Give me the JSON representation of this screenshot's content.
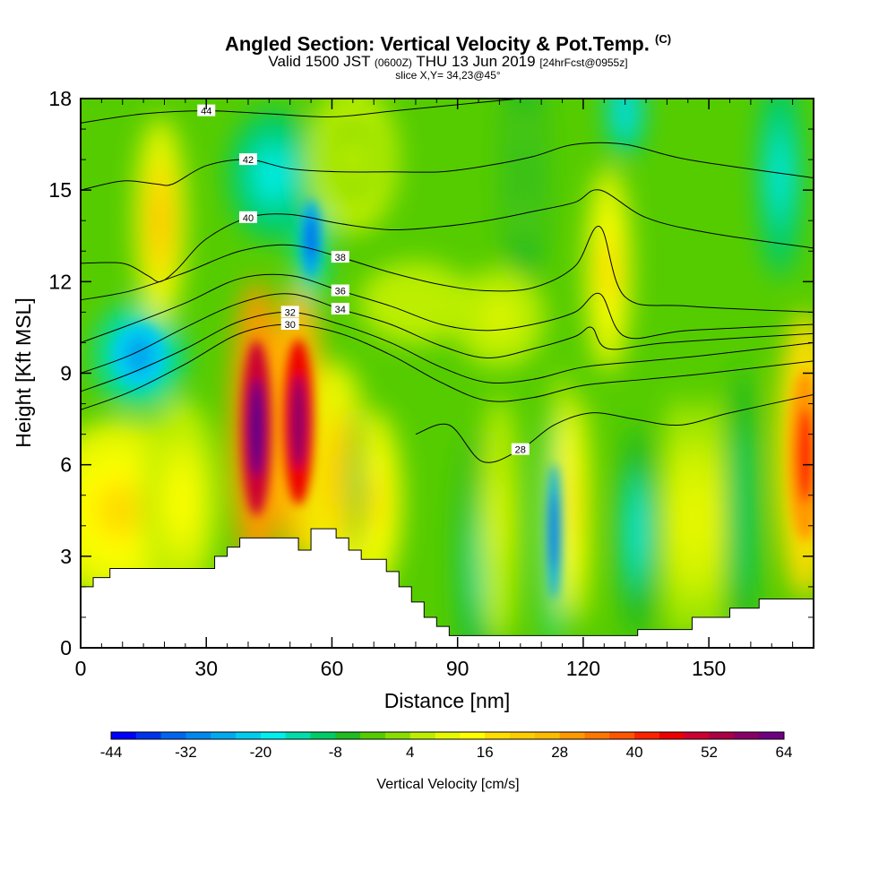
{
  "title": {
    "main": "Angled Section: Vertical Velocity & Pot.Temp.",
    "mark": "(C)",
    "valid_prefix": "Valid 1500 JST",
    "valid_utc": "(0600Z)",
    "valid_date": "THU 13 Jun 2019",
    "forecast": "[24hrFcst@0955z]",
    "slice": "slice X,Y= 34,23@45°"
  },
  "chart_data": {
    "type": "heatmap",
    "xlabel": "Distance [nm]",
    "ylabel": "Height [Kft MSL]",
    "xlim": [
      0,
      175
    ],
    "ylim": [
      0,
      18
    ],
    "xticks": [
      "0",
      "30",
      "60",
      "90",
      "120",
      "150"
    ],
    "yticks": [
      "0",
      "3",
      "6",
      "9",
      "12",
      "15",
      "18"
    ],
    "colorbar": {
      "label": "Vertical Velocity [cm/s]",
      "min": -44,
      "max": 64,
      "step": 4,
      "tick_labels": [
        "-44",
        "-32",
        "-20",
        "-8",
        "4",
        "16",
        "28",
        "40",
        "52",
        "64"
      ]
    },
    "terrain_kft": [
      [
        0,
        2.0
      ],
      [
        3,
        2.3
      ],
      [
        7,
        2.6
      ],
      [
        29,
        2.6
      ],
      [
        32,
        3.0
      ],
      [
        35,
        3.3
      ],
      [
        38,
        3.6
      ],
      [
        49,
        3.6
      ],
      [
        52,
        3.2
      ],
      [
        55,
        3.9
      ],
      [
        58,
        3.9
      ],
      [
        61,
        3.6
      ],
      [
        64,
        3.2
      ],
      [
        67,
        2.9
      ],
      [
        73,
        2.5
      ],
      [
        76,
        2.0
      ],
      [
        79,
        1.5
      ],
      [
        82,
        1.0
      ],
      [
        85,
        0.7
      ],
      [
        88,
        0.4
      ],
      [
        130,
        0.4
      ],
      [
        133,
        0.6
      ],
      [
        143,
        0.6
      ],
      [
        146,
        1.0
      ],
      [
        152,
        1.0
      ],
      [
        155,
        1.3
      ],
      [
        159,
        1.3
      ],
      [
        162,
        1.6
      ],
      [
        175,
        1.6
      ]
    ],
    "theta_contours": [
      {
        "label": "28",
        "points": [
          [
            80,
            7.0
          ],
          [
            88,
            7.3
          ],
          [
            96,
            6.1
          ],
          [
            105,
            6.5
          ],
          [
            113,
            7.3
          ],
          [
            122,
            7.7
          ],
          [
            132,
            7.5
          ],
          [
            143,
            7.3
          ],
          [
            155,
            7.7
          ],
          [
            175,
            8.3
          ]
        ]
      },
      {
        "label": "30",
        "points": [
          [
            0,
            7.8
          ],
          [
            12,
            8.4
          ],
          [
            25,
            9.3
          ],
          [
            38,
            10.3
          ],
          [
            50,
            10.6
          ],
          [
            62,
            10.3
          ],
          [
            74,
            9.6
          ],
          [
            86,
            8.7
          ],
          [
            97,
            8.1
          ],
          [
            108,
            8.2
          ],
          [
            120,
            8.6
          ],
          [
            135,
            8.8
          ],
          [
            150,
            9.0
          ],
          [
            175,
            9.4
          ]
        ]
      },
      {
        "label": "32",
        "points": [
          [
            0,
            8.4
          ],
          [
            12,
            9.0
          ],
          [
            25,
            9.8
          ],
          [
            38,
            10.7
          ],
          [
            50,
            11.0
          ],
          [
            62,
            10.6
          ],
          [
            74,
            10.0
          ],
          [
            86,
            9.2
          ],
          [
            97,
            8.7
          ],
          [
            108,
            8.8
          ],
          [
            120,
            9.2
          ],
          [
            135,
            9.4
          ],
          [
            150,
            9.6
          ],
          [
            175,
            10.0
          ]
        ]
      },
      {
        "label": "34",
        "points": [
          [
            0,
            9.0
          ],
          [
            12,
            9.6
          ],
          [
            25,
            10.5
          ],
          [
            38,
            11.3
          ],
          [
            50,
            11.6
          ],
          [
            62,
            11.1
          ],
          [
            74,
            10.6
          ],
          [
            86,
            9.9
          ],
          [
            97,
            9.5
          ],
          [
            108,
            9.8
          ],
          [
            118,
            10.2
          ],
          [
            122,
            10.5
          ],
          [
            126,
            9.8
          ],
          [
            140,
            10.0
          ],
          [
            175,
            10.3
          ]
        ]
      },
      {
        "label": "36",
        "points": [
          [
            0,
            10.0
          ],
          [
            12,
            10.6
          ],
          [
            25,
            11.3
          ],
          [
            38,
            12.1
          ],
          [
            50,
            12.2
          ],
          [
            62,
            11.7
          ],
          [
            74,
            11.2
          ],
          [
            86,
            10.6
          ],
          [
            97,
            10.4
          ],
          [
            108,
            10.6
          ],
          [
            118,
            11.0
          ],
          [
            124,
            11.6
          ],
          [
            130,
            10.2
          ],
          [
            145,
            10.4
          ],
          [
            175,
            10.6
          ]
        ]
      },
      {
        "label": "38",
        "points": [
          [
            0,
            11.4
          ],
          [
            12,
            11.7
          ],
          [
            25,
            12.3
          ],
          [
            38,
            13.0
          ],
          [
            50,
            13.2
          ],
          [
            62,
            12.8
          ],
          [
            74,
            12.3
          ],
          [
            86,
            11.9
          ],
          [
            97,
            11.7
          ],
          [
            108,
            11.8
          ],
          [
            118,
            12.5
          ],
          [
            124,
            13.8
          ],
          [
            130,
            11.5
          ],
          [
            145,
            11.2
          ],
          [
            175,
            11.0
          ]
        ]
      },
      {
        "label": "40",
        "points": [
          [
            0,
            12.6
          ],
          [
            10,
            12.6
          ],
          [
            16,
            12.2
          ],
          [
            19,
            12.0
          ],
          [
            23,
            12.4
          ],
          [
            30,
            13.4
          ],
          [
            40,
            14.1
          ],
          [
            50,
            14.2
          ],
          [
            62,
            13.9
          ],
          [
            74,
            13.7
          ],
          [
            86,
            13.8
          ],
          [
            97,
            14.0
          ],
          [
            108,
            14.3
          ],
          [
            118,
            14.6
          ],
          [
            124,
            15.0
          ],
          [
            135,
            14.1
          ],
          [
            150,
            13.6
          ],
          [
            175,
            13.1
          ]
        ]
      },
      {
        "label": "42",
        "points": [
          [
            0,
            15.0
          ],
          [
            10,
            15.3
          ],
          [
            18,
            15.2
          ],
          [
            22,
            15.2
          ],
          [
            30,
            15.8
          ],
          [
            40,
            16.0
          ],
          [
            50,
            15.7
          ],
          [
            62,
            15.6
          ],
          [
            74,
            15.6
          ],
          [
            86,
            15.6
          ],
          [
            97,
            15.8
          ],
          [
            108,
            16.1
          ],
          [
            118,
            16.5
          ],
          [
            130,
            16.5
          ],
          [
            145,
            16.0
          ],
          [
            175,
            15.4
          ]
        ]
      },
      {
        "label": "44",
        "points": [
          [
            0,
            17.2
          ],
          [
            15,
            17.5
          ],
          [
            30,
            17.6
          ],
          [
            45,
            17.5
          ],
          [
            60,
            17.4
          ],
          [
            75,
            17.6
          ],
          [
            90,
            17.8
          ],
          [
            105,
            18.0
          ]
        ]
      }
    ],
    "vertical_velocity_features": [
      {
        "x": 42,
        "y": 7.2,
        "rx": 4.5,
        "ry": 3.6,
        "value": 64
      },
      {
        "x": 52,
        "y": 7.4,
        "rx": 4.5,
        "ry": 3.4,
        "value": 56
      },
      {
        "x": 55,
        "y": 13.4,
        "rx": 3.0,
        "ry": 1.6,
        "value": -36
      },
      {
        "x": 46,
        "y": 15.5,
        "rx": 8,
        "ry": 1.6,
        "value": -22
      },
      {
        "x": 14,
        "y": 9.6,
        "rx": 8,
        "ry": 1.3,
        "value": -30
      },
      {
        "x": 19,
        "y": 14.0,
        "rx": 4.5,
        "ry": 2.5,
        "value": 22
      },
      {
        "x": 113,
        "y": 3.8,
        "rx": 2.0,
        "ry": 2.8,
        "value": -36
      },
      {
        "x": 173,
        "y": 6.3,
        "rx": 5,
        "ry": 3.5,
        "value": 38
      },
      {
        "x": 126,
        "y": 12.4,
        "rx": 4,
        "ry": 2.5,
        "value": 18
      },
      {
        "x": 9,
        "y": 4.5,
        "rx": 14,
        "ry": 2.2,
        "value": 14
      },
      {
        "x": 24,
        "y": 4.8,
        "rx": 7,
        "ry": 2.5,
        "value": 10
      },
      {
        "x": 61,
        "y": 5.6,
        "rx": 6,
        "ry": 2.8,
        "value": 20
      },
      {
        "x": 70,
        "y": 4.8,
        "rx": 5,
        "ry": 2.2,
        "value": 16
      },
      {
        "x": 95,
        "y": 2.8,
        "rx": 4,
        "ry": 3.2,
        "value": -18
      },
      {
        "x": 133,
        "y": 3.8,
        "rx": 3.5,
        "ry": 2.6,
        "value": -20
      },
      {
        "x": 143,
        "y": 4.2,
        "rx": 3,
        "ry": 3.0,
        "value": 10
      },
      {
        "x": 150,
        "y": 4.2,
        "rx": 3,
        "ry": 3.0,
        "value": 12
      },
      {
        "x": 158,
        "y": 4.5,
        "rx": 3,
        "ry": 3.5,
        "value": -14
      },
      {
        "x": 167,
        "y": 15.5,
        "rx": 4,
        "ry": 2.5,
        "value": -22
      },
      {
        "x": 130,
        "y": 17.6,
        "rx": 3.5,
        "ry": 1.2,
        "value": -26
      },
      {
        "x": 106,
        "y": 15.5,
        "rx": 4,
        "ry": 2.8,
        "value": -8
      },
      {
        "x": 65,
        "y": 16.0,
        "rx": 8,
        "ry": 1.8,
        "value": 2
      },
      {
        "x": 115,
        "y": 5.0,
        "rx": 1.8,
        "ry": 3.0,
        "value": 14
      },
      {
        "x": 119,
        "y": 4.5,
        "rx": 2.0,
        "ry": 2.8,
        "value": 14
      },
      {
        "x": 100,
        "y": 4.2,
        "rx": 3.5,
        "ry": 3.0,
        "value": 6
      },
      {
        "x": 80,
        "y": 11.3,
        "rx": 10,
        "ry": 1.0,
        "value": 4
      },
      {
        "x": 100,
        "y": 10.8,
        "rx": 8,
        "ry": 1.2,
        "value": 6
      },
      {
        "x": 66,
        "y": 5.5,
        "rx": 1.2,
        "ry": 1.8,
        "value": -12
      }
    ]
  }
}
